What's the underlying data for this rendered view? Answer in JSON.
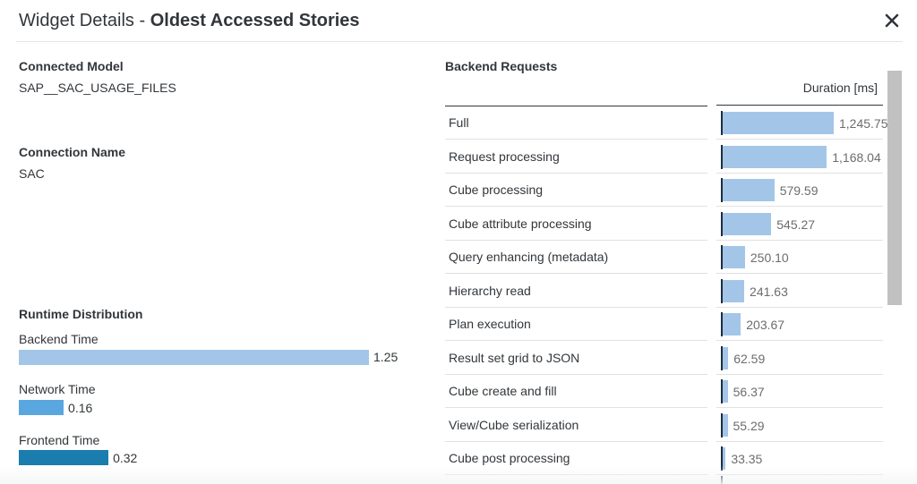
{
  "dialog": {
    "title_prefix": "Widget Details - ",
    "title_name": "Oldest Accessed Stories",
    "close_icon": "close-icon"
  },
  "connected_model": {
    "label": "Connected Model",
    "value": "SAP__SAC_USAGE_FILES"
  },
  "connection_name": {
    "label": "Connection Name",
    "value": "SAC"
  },
  "runtime_distribution": {
    "title": "Runtime Distribution",
    "max": 1.25,
    "items": [
      {
        "label": "Backend Time",
        "value": "1.25",
        "amount": 1.25,
        "color": "#a3c6e8"
      },
      {
        "label": "Network Time",
        "value": "0.16",
        "amount": 0.16,
        "color": "#5aa7e0"
      },
      {
        "label": "Frontend Time",
        "value": "0.32",
        "amount": 0.32,
        "color": "#1b7cae"
      }
    ]
  },
  "backend_requests": {
    "title": "Backend Requests",
    "column_header": "Duration [ms]",
    "bar_color": "#a3c6e8",
    "max": 1245.75,
    "rows": [
      {
        "name": "Full",
        "value": "1,245.75",
        "amount": 1245.75
      },
      {
        "name": "Request processing",
        "value": "1,168.04",
        "amount": 1168.04
      },
      {
        "name": "Cube processing",
        "value": "579.59",
        "amount": 579.59
      },
      {
        "name": "Cube attribute processing",
        "value": "545.27",
        "amount": 545.27
      },
      {
        "name": "Query enhancing (metadata)",
        "value": "250.10",
        "amount": 250.1
      },
      {
        "name": "Hierarchy read",
        "value": "241.63",
        "amount": 241.63
      },
      {
        "name": "Plan execution",
        "value": "203.67",
        "amount": 203.67
      },
      {
        "name": "Result set grid to JSON",
        "value": "62.59",
        "amount": 62.59
      },
      {
        "name": "Cube create and fill",
        "value": "56.37",
        "amount": 56.37
      },
      {
        "name": "View/Cube serialization",
        "value": "55.29",
        "amount": 55.29
      },
      {
        "name": "Cube post processing",
        "value": "33.35",
        "amount": 33.35
      }
    ]
  }
}
